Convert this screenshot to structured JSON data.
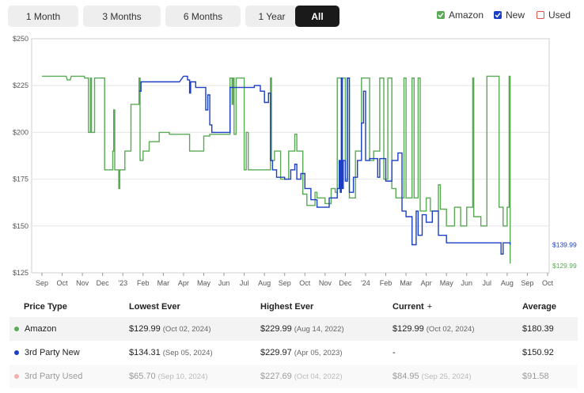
{
  "tabs": [
    {
      "label": "1 Month",
      "active": false
    },
    {
      "label": "3 Months",
      "active": false
    },
    {
      "label": "6 Months",
      "active": false
    },
    {
      "label": "1 Year",
      "active": false
    },
    {
      "label": "All",
      "active": true
    }
  ],
  "legend": [
    {
      "label": "Amazon",
      "color": "#5aaa55",
      "checked": true,
      "style": "filled"
    },
    {
      "label": "New",
      "color": "#1a3fc4",
      "checked": true,
      "style": "filled"
    },
    {
      "label": "Used",
      "color": "#e0524a",
      "checked": false,
      "style": "outline"
    }
  ],
  "chart_data": {
    "type": "line",
    "x_ticks": [
      "Sep",
      "Oct",
      "Nov",
      "Dec",
      "'23",
      "Feb",
      "Mar",
      "Apr",
      "May",
      "Jun",
      "Jul",
      "Aug",
      "Sep",
      "Oct",
      "Nov",
      "Dec",
      "'24",
      "Feb",
      "Mar",
      "Apr",
      "May",
      "Jun",
      "Jul",
      "Aug",
      "Sep",
      "Oct"
    ],
    "y_ticks": [
      "$125",
      "$150",
      "$175",
      "$200",
      "$225",
      "$250"
    ],
    "ylim": [
      125,
      250
    ],
    "grid": true,
    "end_labels": {
      "new": "$139.99",
      "amazon": "$129.99"
    },
    "series": [
      {
        "name": "Amazon",
        "color": "#5aaa55",
        "points": [
          [
            0,
            230
          ],
          [
            1.2,
            230
          ],
          [
            1.25,
            228
          ],
          [
            1.4,
            228
          ],
          [
            1.45,
            230
          ],
          [
            2.1,
            230
          ],
          [
            2.1,
            229
          ],
          [
            2.3,
            229
          ],
          [
            2.3,
            200
          ],
          [
            2.4,
            200
          ],
          [
            2.4,
            229
          ],
          [
            2.45,
            229
          ],
          [
            2.45,
            200
          ],
          [
            2.6,
            200
          ],
          [
            2.6,
            229
          ],
          [
            3.1,
            229
          ],
          [
            3.1,
            180
          ],
          [
            3.5,
            180
          ],
          [
            3.5,
            190
          ],
          [
            3.55,
            190
          ],
          [
            3.55,
            212
          ],
          [
            3.6,
            212
          ],
          [
            3.6,
            180
          ],
          [
            3.8,
            180
          ],
          [
            3.8,
            170
          ],
          [
            3.85,
            170
          ],
          [
            3.85,
            180
          ],
          [
            4.1,
            180
          ],
          [
            4.1,
            190
          ],
          [
            4.4,
            190
          ],
          [
            4.4,
            215
          ],
          [
            4.8,
            215
          ],
          [
            4.8,
            229
          ],
          [
            4.85,
            229
          ],
          [
            4.85,
            185
          ],
          [
            5.0,
            185
          ],
          [
            5.0,
            190
          ],
          [
            5.3,
            190
          ],
          [
            5.3,
            195
          ],
          [
            5.8,
            195
          ],
          [
            5.8,
            200
          ],
          [
            6.3,
            200
          ],
          [
            6.3,
            199
          ],
          [
            7.3,
            199
          ],
          [
            7.3,
            190
          ],
          [
            8.0,
            190
          ],
          [
            8.0,
            198
          ],
          [
            8.3,
            198
          ],
          [
            8.3,
            199
          ],
          [
            9.3,
            199
          ],
          [
            9.3,
            229
          ],
          [
            9.4,
            229
          ],
          [
            9.4,
            215
          ],
          [
            9.45,
            215
          ],
          [
            9.45,
            229
          ],
          [
            9.5,
            229
          ],
          [
            9.5,
            199
          ],
          [
            9.6,
            199
          ],
          [
            9.6,
            229
          ],
          [
            10.0,
            229
          ],
          [
            10.0,
            180
          ],
          [
            10.1,
            180
          ],
          [
            10.1,
            200
          ],
          [
            10.2,
            200
          ],
          [
            10.2,
            180
          ],
          [
            10.6,
            180
          ],
          [
            10.6,
            180
          ],
          [
            11.3,
            180
          ],
          [
            11.3,
            229
          ],
          [
            11.35,
            229
          ],
          [
            11.35,
            185
          ],
          [
            11.5,
            185
          ],
          [
            11.5,
            190
          ],
          [
            11.8,
            190
          ],
          [
            11.8,
            175
          ],
          [
            12.2,
            175
          ],
          [
            12.2,
            190
          ],
          [
            12.5,
            190
          ],
          [
            12.5,
            199
          ],
          [
            12.6,
            199
          ],
          [
            12.6,
            190
          ],
          [
            12.9,
            190
          ],
          [
            12.9,
            167
          ],
          [
            13.1,
            167
          ],
          [
            13.1,
            161
          ],
          [
            13.5,
            161
          ],
          [
            13.5,
            168
          ],
          [
            13.6,
            168
          ],
          [
            13.6,
            165
          ],
          [
            14.0,
            165
          ],
          [
            14.0,
            162
          ],
          [
            14.3,
            162
          ],
          [
            14.3,
            170
          ],
          [
            14.5,
            170
          ],
          [
            14.5,
            168
          ],
          [
            14.6,
            168
          ],
          [
            14.6,
            229
          ],
          [
            15.0,
            229
          ],
          [
            15.0,
            175
          ],
          [
            15.1,
            175
          ],
          [
            15.1,
            229
          ],
          [
            15.2,
            229
          ],
          [
            15.2,
            165
          ],
          [
            15.5,
            165
          ],
          [
            15.5,
            190
          ],
          [
            15.8,
            190
          ],
          [
            15.8,
            229
          ],
          [
            16.2,
            229
          ],
          [
            16.2,
            185
          ],
          [
            16.4,
            185
          ],
          [
            16.4,
            190
          ],
          [
            16.7,
            190
          ],
          [
            16.7,
            229
          ],
          [
            16.9,
            229
          ],
          [
            16.9,
            175
          ],
          [
            17.1,
            175
          ],
          [
            17.1,
            229
          ],
          [
            17.3,
            229
          ],
          [
            17.3,
            170
          ],
          [
            17.5,
            170
          ],
          [
            17.5,
            165
          ],
          [
            17.9,
            165
          ],
          [
            17.9,
            229
          ],
          [
            18.0,
            229
          ],
          [
            18.0,
            165
          ],
          [
            18.3,
            165
          ],
          [
            18.3,
            229
          ],
          [
            18.4,
            229
          ],
          [
            18.4,
            165
          ],
          [
            18.6,
            165
          ],
          [
            18.6,
            229
          ],
          [
            18.7,
            229
          ],
          [
            18.7,
            158
          ],
          [
            19.0,
            158
          ],
          [
            19.0,
            165
          ],
          [
            19.2,
            165
          ],
          [
            19.2,
            158
          ],
          [
            19.6,
            158
          ],
          [
            19.6,
            172
          ],
          [
            19.7,
            172
          ],
          [
            19.7,
            159
          ],
          [
            20.0,
            159
          ],
          [
            20.0,
            150
          ],
          [
            20.4,
            150
          ],
          [
            20.4,
            160
          ],
          [
            20.7,
            160
          ],
          [
            20.7,
            150
          ],
          [
            21.0,
            150
          ],
          [
            21.0,
            160
          ],
          [
            21.3,
            160
          ],
          [
            21.3,
            229
          ],
          [
            21.35,
            229
          ],
          [
            21.35,
            155
          ],
          [
            21.7,
            155
          ],
          [
            21.7,
            150
          ],
          [
            22.0,
            150
          ],
          [
            22.0,
            230
          ],
          [
            22.6,
            230
          ],
          [
            22.6,
            160
          ],
          [
            22.8,
            160
          ],
          [
            22.8,
            150
          ],
          [
            23.0,
            150
          ],
          [
            23.0,
            160
          ],
          [
            23.1,
            160
          ],
          [
            23.1,
            230
          ],
          [
            23.15,
            230
          ],
          [
            23.15,
            130
          ]
        ]
      },
      {
        "name": "New",
        "color": "#1a3fc4",
        "points": [
          [
            4.8,
            222
          ],
          [
            4.9,
            222
          ],
          [
            4.9,
            227
          ],
          [
            5.0,
            227
          ],
          [
            6.8,
            227
          ],
          [
            7.0,
            230
          ],
          [
            7.2,
            230
          ],
          [
            7.2,
            228
          ],
          [
            7.3,
            228
          ],
          [
            7.3,
            221
          ],
          [
            7.35,
            221
          ],
          [
            7.35,
            227
          ],
          [
            7.6,
            227
          ],
          [
            7.6,
            224
          ],
          [
            8.1,
            224
          ],
          [
            8.1,
            212
          ],
          [
            8.2,
            212
          ],
          [
            8.2,
            220
          ],
          [
            8.3,
            220
          ],
          [
            8.3,
            204
          ],
          [
            8.4,
            204
          ],
          [
            8.4,
            200
          ],
          [
            9.3,
            200
          ],
          [
            9.3,
            224
          ],
          [
            10.5,
            224
          ],
          [
            10.5,
            225
          ],
          [
            10.8,
            225
          ],
          [
            10.8,
            222
          ],
          [
            11.0,
            222
          ],
          [
            11.0,
            216
          ],
          [
            11.2,
            216
          ],
          [
            11.2,
            221
          ],
          [
            11.3,
            221
          ],
          [
            11.3,
            185
          ],
          [
            11.4,
            185
          ],
          [
            11.4,
            180
          ],
          [
            11.6,
            180
          ],
          [
            11.6,
            176
          ],
          [
            12.0,
            176
          ],
          [
            12.0,
            175
          ],
          [
            12.3,
            175
          ],
          [
            12.3,
            180
          ],
          [
            12.5,
            180
          ],
          [
            12.5,
            183
          ],
          [
            12.6,
            183
          ],
          [
            12.6,
            175
          ],
          [
            12.8,
            175
          ],
          [
            12.8,
            178
          ],
          [
            13.0,
            178
          ],
          [
            13.0,
            170
          ],
          [
            13.3,
            170
          ],
          [
            13.3,
            164
          ],
          [
            13.6,
            164
          ],
          [
            13.6,
            160
          ],
          [
            14.0,
            160
          ],
          [
            14.0,
            160
          ],
          [
            14.2,
            160
          ],
          [
            14.2,
            165
          ],
          [
            14.6,
            165
          ],
          [
            14.6,
            170
          ],
          [
            14.7,
            170
          ],
          [
            14.7,
            185
          ],
          [
            14.75,
            185
          ],
          [
            14.75,
            168
          ],
          [
            14.8,
            168
          ],
          [
            14.8,
            229
          ],
          [
            14.85,
            229
          ],
          [
            14.85,
            170
          ],
          [
            14.9,
            170
          ],
          [
            14.9,
            185
          ],
          [
            15.0,
            185
          ],
          [
            15.0,
            174
          ],
          [
            15.1,
            174
          ],
          [
            15.1,
            229
          ],
          [
            15.2,
            229
          ],
          [
            15.2,
            168
          ],
          [
            15.4,
            168
          ],
          [
            15.4,
            176
          ],
          [
            15.6,
            176
          ],
          [
            15.6,
            185
          ],
          [
            15.8,
            185
          ],
          [
            15.8,
            205
          ],
          [
            15.9,
            205
          ],
          [
            15.9,
            222
          ],
          [
            16.0,
            222
          ],
          [
            16.0,
            185
          ],
          [
            16.2,
            185
          ],
          [
            16.2,
            186
          ],
          [
            16.6,
            186
          ],
          [
            16.6,
            176
          ],
          [
            16.7,
            176
          ],
          [
            16.7,
            186
          ],
          [
            17.0,
            186
          ],
          [
            17.0,
            174
          ],
          [
            17.3,
            174
          ],
          [
            17.3,
            185
          ],
          [
            17.6,
            185
          ],
          [
            17.6,
            189
          ],
          [
            17.8,
            189
          ],
          [
            17.8,
            158
          ],
          [
            18.0,
            158
          ],
          [
            18.0,
            155
          ],
          [
            18.3,
            155
          ],
          [
            18.3,
            140
          ],
          [
            18.5,
            140
          ],
          [
            18.5,
            158
          ],
          [
            18.6,
            158
          ],
          [
            18.6,
            145
          ],
          [
            18.8,
            145
          ],
          [
            18.8,
            156
          ],
          [
            19.0,
            156
          ],
          [
            19.0,
            152
          ],
          [
            19.3,
            152
          ],
          [
            19.3,
            158
          ],
          [
            19.6,
            158
          ],
          [
            19.6,
            145
          ],
          [
            20.0,
            145
          ],
          [
            20.0,
            141
          ],
          [
            22.7,
            141
          ],
          [
            22.7,
            135
          ],
          [
            22.8,
            135
          ],
          [
            22.8,
            141
          ],
          [
            23.15,
            141
          ],
          [
            23.15,
            140
          ]
        ]
      }
    ]
  },
  "table": {
    "headers": [
      "Price Type",
      "Lowest Ever",
      "Highest Ever",
      "Current",
      "Average"
    ],
    "current_sort_icon": "+",
    "rows": [
      {
        "type": "Amazon",
        "dot_color": "#5aaa55",
        "lowest": "$129.99",
        "lowest_date": "(Oct 02, 2024)",
        "highest": "$229.99",
        "highest_date": "(Aug 14, 2022)",
        "current": "$129.99",
        "current_date": "(Oct 02, 2024)",
        "average": "$180.39",
        "faded": false
      },
      {
        "type": "3rd Party New",
        "dot_color": "#1a3fc4",
        "lowest": "$134.31",
        "lowest_date": "(Sep 05, 2024)",
        "highest": "$229.97",
        "highest_date": "(Apr 05, 2023)",
        "current": "-",
        "current_date": "",
        "average": "$150.92",
        "faded": false
      },
      {
        "type": "3rd Party Used",
        "dot_color": "#e0524a",
        "lowest": "$65.70",
        "lowest_date": "(Sep 10, 2024)",
        "highest": "$227.69",
        "highest_date": "(Oct 04, 2022)",
        "current": "$84.95",
        "current_date": "(Sep 25, 2024)",
        "average": "$91.58",
        "faded": true
      }
    ]
  }
}
